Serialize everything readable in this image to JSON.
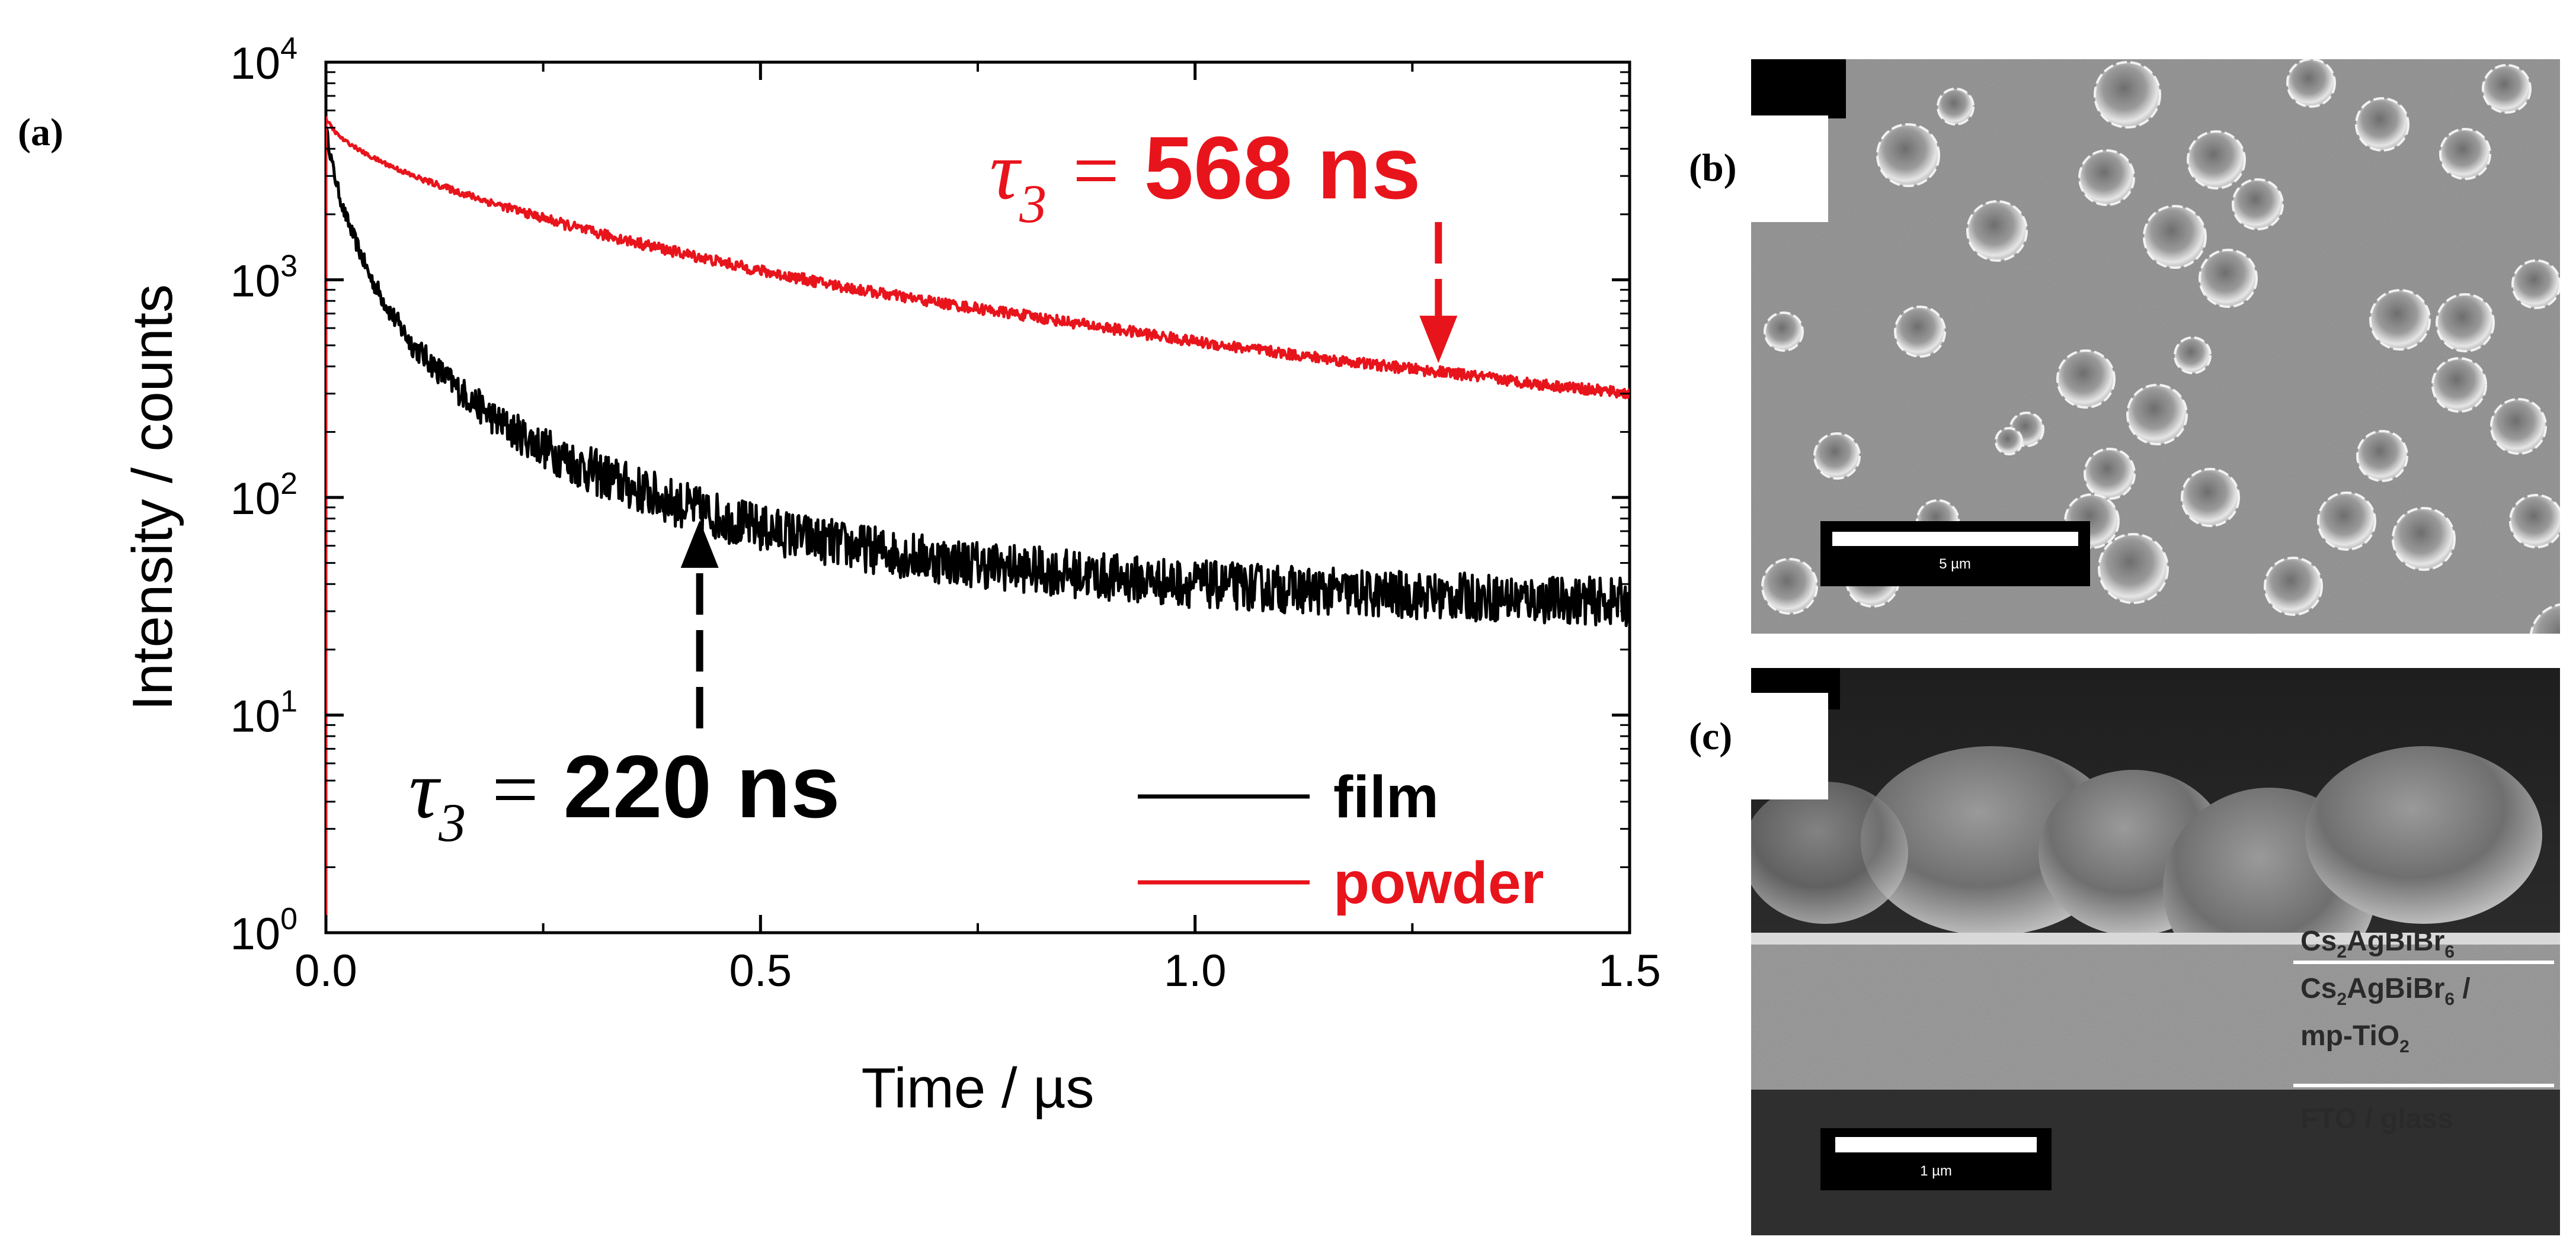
{
  "panels": {
    "a": "(a)",
    "b": "(b)",
    "c": "(c)"
  },
  "chart_data": {
    "type": "line",
    "scale_y": "log",
    "xlabel": "Time / µs",
    "ylabel": "Intensity / counts",
    "xlim": [
      0.0,
      1.5
    ],
    "ylim": [
      1,
      10000
    ],
    "x_ticks": [
      "0.0",
      "0.5",
      "1.0",
      "1.5"
    ],
    "x_tick_values": [
      0.0,
      0.5,
      1.0,
      1.5
    ],
    "y_ticks": [
      {
        "base": "10",
        "exp": "0",
        "value": 1
      },
      {
        "base": "10",
        "exp": "1",
        "value": 10
      },
      {
        "base": "10",
        "exp": "2",
        "value": 100
      },
      {
        "base": "10",
        "exp": "3",
        "value": 1000
      },
      {
        "base": "10",
        "exp": "4",
        "value": 10000
      }
    ],
    "legend_position": "bottom-right",
    "series": [
      {
        "name": "film",
        "color": "#000000",
        "x": [
          0.0,
          0.005,
          0.01,
          0.02,
          0.03,
          0.05,
          0.075,
          0.1,
          0.15,
          0.2,
          0.25,
          0.3,
          0.35,
          0.4,
          0.45,
          0.5,
          0.6,
          0.7,
          0.8,
          0.9,
          1.0,
          1.1,
          1.2,
          1.3,
          1.4,
          1.5
        ],
        "y": [
          5000,
          3800,
          3000,
          2100,
          1650,
          1050,
          700,
          500,
          320,
          220,
          170,
          135,
          112,
          95,
          82,
          72,
          60,
          52,
          47,
          43,
          40,
          38,
          36,
          35,
          34,
          33
        ],
        "noise": 0.22
      },
      {
        "name": "powder",
        "color": "#e8141c",
        "x": [
          0.0,
          0.01,
          0.02,
          0.05,
          0.1,
          0.15,
          0.2,
          0.3,
          0.4,
          0.5,
          0.6,
          0.7,
          0.8,
          0.9,
          1.0,
          1.1,
          1.2,
          1.3,
          1.4,
          1.5
        ],
        "y": [
          5500,
          4800,
          4400,
          3700,
          3000,
          2550,
          2200,
          1680,
          1350,
          1100,
          920,
          790,
          690,
          600,
          520,
          460,
          410,
          370,
          330,
          300
        ],
        "noise": 0.05
      }
    ],
    "annotations": [
      {
        "symbol": "τ",
        "sub": "3",
        "eq": " = ",
        "value": "568 ns",
        "color": "#e8141c",
        "x_arrow": 1.28,
        "y_arrow": 370
      },
      {
        "symbol": "τ",
        "sub": "3",
        "eq": " = ",
        "value": "220 ns",
        "color": "#000000",
        "x_arrow": 0.43,
        "y_arrow": 90
      }
    ]
  },
  "sem_cross_section": {
    "layers": [
      {
        "main": "Cs",
        "s1": "2",
        "mid": "AgBiBr",
        "s2": "6",
        "tail": ""
      },
      {
        "main": "Cs",
        "s1": "2",
        "mid": "AgBiBr",
        "s2": "6",
        "tail": " /"
      },
      {
        "main": "mp-TiO",
        "s1": "2",
        "mid": "",
        "s2": "",
        "tail": ""
      },
      {
        "main": "FTO / glass",
        "s1": "",
        "mid": "",
        "s2": "",
        "tail": ""
      }
    ],
    "scale_bar": "1 µm"
  },
  "sem_top": {
    "scale_bar": "5 µm"
  }
}
